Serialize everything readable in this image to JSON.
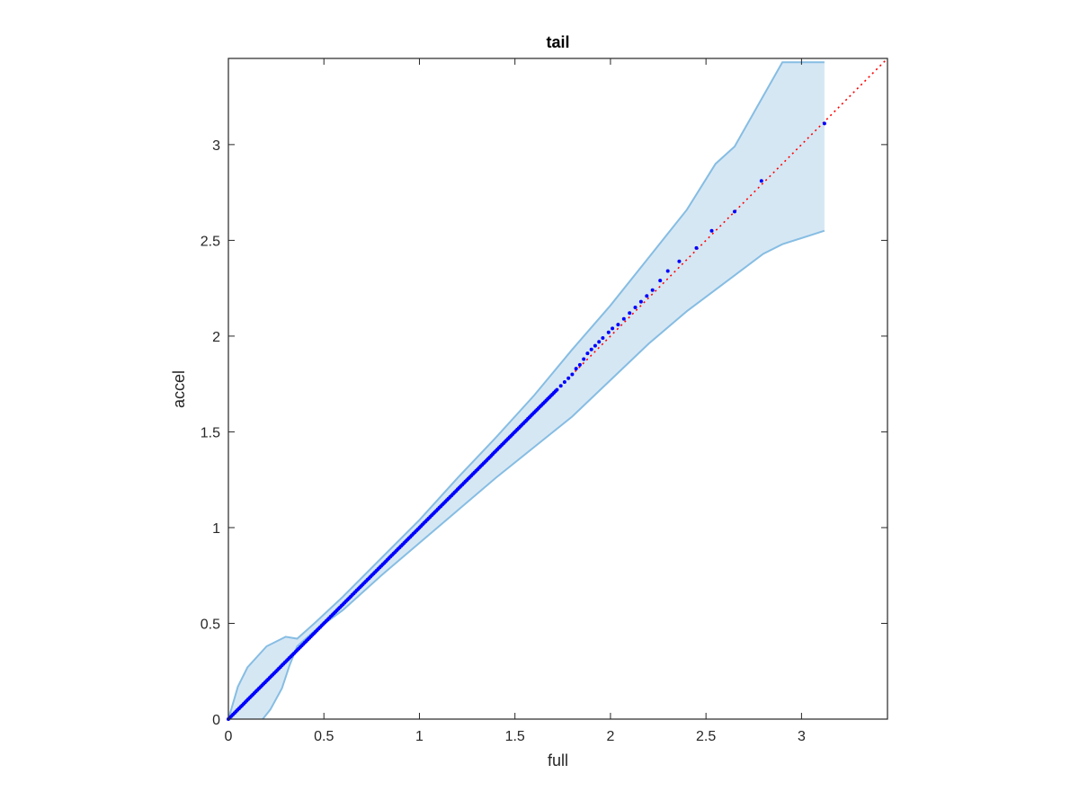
{
  "chart_data": {
    "type": "scatter",
    "title": "tail",
    "xlabel": "full",
    "ylabel": "accel",
    "xlim": [
      0,
      3.45
    ],
    "ylim": [
      0,
      3.45
    ],
    "xticks": [
      "0",
      "0.5",
      "1",
      "1.5",
      "2",
      "2.5",
      "3"
    ],
    "yticks": [
      "0",
      "0.5",
      "1",
      "1.5",
      "2",
      "2.5",
      "3"
    ],
    "grid": false,
    "legend": "none",
    "colors": {
      "band_fill": "#d6e7f4",
      "band_edge": "#86bde3",
      "points": "#0000ff",
      "reference": "#ff0000",
      "axes": "#262626"
    },
    "reference_line": {
      "x": [
        0,
        3.45
      ],
      "y": [
        0,
        3.45
      ],
      "style": "dotted"
    },
    "band": {
      "upper": [
        [
          0,
          0
        ],
        [
          0.05,
          0.17
        ],
        [
          0.1,
          0.27
        ],
        [
          0.2,
          0.38
        ],
        [
          0.3,
          0.43
        ],
        [
          0.36,
          0.42
        ],
        [
          0.45,
          0.5
        ],
        [
          0.6,
          0.64
        ],
        [
          0.8,
          0.84
        ],
        [
          1.0,
          1.04
        ],
        [
          1.2,
          1.26
        ],
        [
          1.4,
          1.47
        ],
        [
          1.6,
          1.69
        ],
        [
          1.8,
          1.93
        ],
        [
          2.0,
          2.16
        ],
        [
          2.2,
          2.41
        ],
        [
          2.4,
          2.66
        ],
        [
          2.55,
          2.9
        ],
        [
          2.65,
          2.99
        ],
        [
          2.9,
          3.43
        ],
        [
          3.12,
          3.43
        ]
      ],
      "lower": [
        [
          3.12,
          2.55
        ],
        [
          2.9,
          2.48
        ],
        [
          2.8,
          2.43
        ],
        [
          2.6,
          2.28
        ],
        [
          2.4,
          2.13
        ],
        [
          2.2,
          1.96
        ],
        [
          2.0,
          1.77
        ],
        [
          1.8,
          1.58
        ],
        [
          1.6,
          1.42
        ],
        [
          1.4,
          1.26
        ],
        [
          1.2,
          1.09
        ],
        [
          1.0,
          0.92
        ],
        [
          0.8,
          0.75
        ],
        [
          0.6,
          0.57
        ],
        [
          0.45,
          0.46
        ],
        [
          0.36,
          0.38
        ],
        [
          0.32,
          0.28
        ],
        [
          0.28,
          0.16
        ],
        [
          0.22,
          0.05
        ],
        [
          0.18,
          0
        ]
      ]
    },
    "points": {
      "dense_range": [
        0,
        1.72
      ],
      "tail": [
        [
          1.74,
          1.74
        ],
        [
          1.76,
          1.76
        ],
        [
          1.78,
          1.78
        ],
        [
          1.8,
          1.8
        ],
        [
          1.82,
          1.83
        ],
        [
          1.84,
          1.85
        ],
        [
          1.86,
          1.88
        ],
        [
          1.88,
          1.91
        ],
        [
          1.9,
          1.93
        ],
        [
          1.92,
          1.95
        ],
        [
          1.94,
          1.97
        ],
        [
          1.96,
          1.99
        ],
        [
          1.99,
          2.02
        ],
        [
          2.01,
          2.04
        ],
        [
          2.04,
          2.06
        ],
        [
          2.07,
          2.09
        ],
        [
          2.1,
          2.12
        ],
        [
          2.13,
          2.15
        ],
        [
          2.16,
          2.18
        ],
        [
          2.19,
          2.21
        ],
        [
          2.22,
          2.24
        ],
        [
          2.26,
          2.29
        ],
        [
          2.3,
          2.34
        ],
        [
          2.36,
          2.39
        ],
        [
          2.45,
          2.46
        ],
        [
          2.53,
          2.55
        ],
        [
          2.65,
          2.65
        ],
        [
          2.79,
          2.81
        ],
        [
          3.12,
          3.11
        ]
      ]
    }
  }
}
